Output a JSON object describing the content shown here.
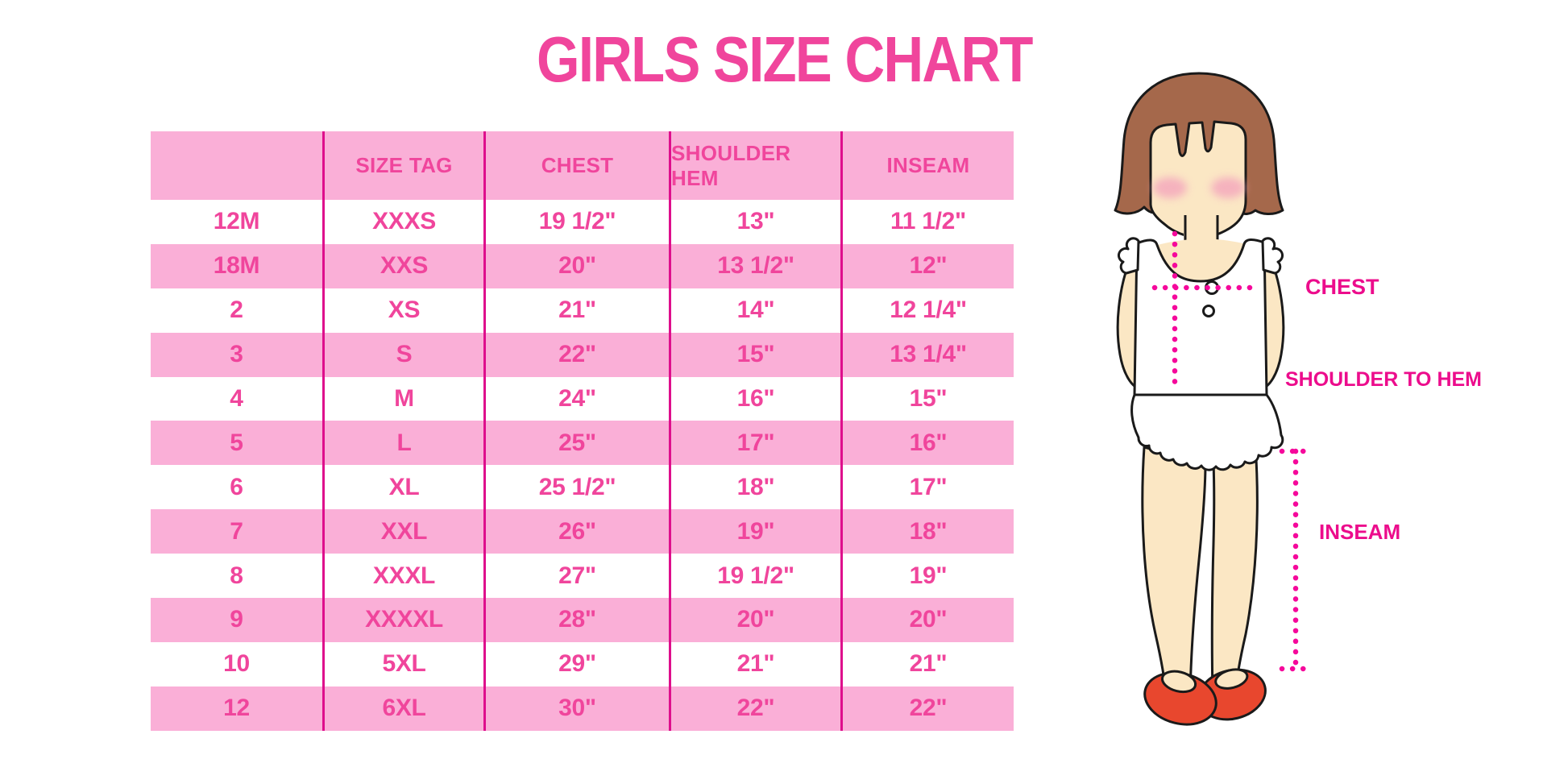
{
  "title": "GIRLS SIZE CHART",
  "table": {
    "headers": [
      "",
      "SIZE TAG",
      "CHEST",
      "SHOULDER HEM",
      "INSEAM"
    ],
    "rows": [
      [
        "12M",
        "XXXS",
        "19 1/2\"",
        "13\"",
        "11 1/2\""
      ],
      [
        "18M",
        "XXS",
        "20\"",
        "13 1/2\"",
        "12\""
      ],
      [
        "2",
        "XS",
        "21\"",
        "14\"",
        "12 1/4\""
      ],
      [
        "3",
        "S",
        "22\"",
        "15\"",
        "13 1/4\""
      ],
      [
        "4",
        "M",
        "24\"",
        "16\"",
        "15\""
      ],
      [
        "5",
        "L",
        "25\"",
        "17\"",
        "16\""
      ],
      [
        "6",
        "XL",
        "25 1/2\"",
        "18\"",
        "17\""
      ],
      [
        "7",
        "XXL",
        "26\"",
        "19\"",
        "18\""
      ],
      [
        "8",
        "XXXL",
        "27\"",
        "19 1/2\"",
        "19\""
      ],
      [
        "9",
        "XXXXL",
        "28\"",
        "20\"",
        "20\""
      ],
      [
        "10",
        "5XL",
        "29\"",
        "21\"",
        "21\""
      ],
      [
        "12",
        "6XL",
        "30\"",
        "22\"",
        "22\""
      ]
    ]
  },
  "figure": {
    "chest_label": "CHEST",
    "shoulder_to_hem_label": "SHOULDER TO HEM",
    "inseam_label": "INSEAM"
  },
  "colors": {
    "accent_pink_text": "#F0459C",
    "row_pink": "#FAAFD7",
    "border_magenta": "#DE0E8C",
    "annotation_magenta": "#EC0C8C",
    "measure_dots": "#F5089B",
    "hair_brown": "#A5684B",
    "skin": "#FBE7C4",
    "blush": "#F4A9BD",
    "shoe_red": "#E8472E"
  },
  "chart_data": {
    "type": "table",
    "title": "GIRLS SIZE CHART",
    "columns": [
      "",
      "SIZE TAG",
      "CHEST",
      "SHOULDER HEM",
      "INSEAM"
    ],
    "rows": [
      [
        "12M",
        "XXXS",
        "19 1/2\"",
        "13\"",
        "11 1/2\""
      ],
      [
        "18M",
        "XXS",
        "20\"",
        "13 1/2\"",
        "12\""
      ],
      [
        "2",
        "XS",
        "21\"",
        "14\"",
        "12 1/4\""
      ],
      [
        "3",
        "S",
        "22\"",
        "15\"",
        "13 1/4\""
      ],
      [
        "4",
        "M",
        "24\"",
        "16\"",
        "15\""
      ],
      [
        "5",
        "L",
        "25\"",
        "17\"",
        "16\""
      ],
      [
        "6",
        "XL",
        "25 1/2\"",
        "18\"",
        "17\""
      ],
      [
        "7",
        "XXL",
        "26\"",
        "19\"",
        "18\""
      ],
      [
        "8",
        "XXXL",
        "27\"",
        "19 1/2\"",
        "19\""
      ],
      [
        "9",
        "XXXXL",
        "28\"",
        "20\"",
        "20\""
      ],
      [
        "10",
        "5XL",
        "29\"",
        "21\"",
        "21\""
      ],
      [
        "12",
        "6XL",
        "30\"",
        "22\"",
        "22\""
      ]
    ],
    "legend_annotations": [
      "CHEST",
      "SHOULDER TO HEM",
      "INSEAM"
    ]
  }
}
